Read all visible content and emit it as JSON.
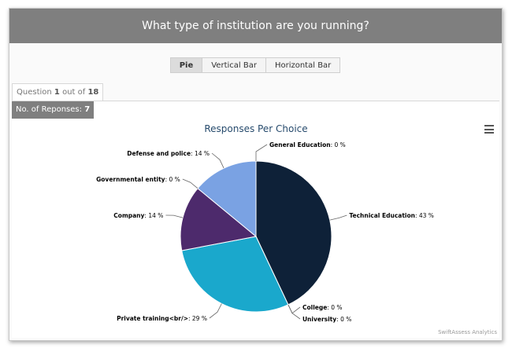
{
  "header": {
    "title": "What type of institution are you running?"
  },
  "toolbar": {
    "buttons": [
      "Pie",
      "Vertical Bar",
      "Horizontal Bar"
    ],
    "active": "Pie"
  },
  "question_tab": {
    "prefix": "Question",
    "current": "1",
    "separator": "out of",
    "total": "18"
  },
  "responses": {
    "label": "No. of Reponses:",
    "count": "7"
  },
  "credits": "SwiftAssess Analytics",
  "chart_data": {
    "type": "pie",
    "title": "Responses Per Choice",
    "slices": [
      {
        "label": "General Education",
        "value": 0,
        "display": "0 %",
        "color": "#7eb1e6"
      },
      {
        "label": "Technical Education",
        "value": 43,
        "display": "43 %",
        "color": "#0e2138"
      },
      {
        "label": "College",
        "value": 0,
        "display": "0 %",
        "color": "#0e2138"
      },
      {
        "label": "University",
        "value": 0,
        "display": "0 %",
        "color": "#1aa8cc"
      },
      {
        "label": "Private training<br/>",
        "value": 29,
        "display": "29 %",
        "color": "#1aa8cc"
      },
      {
        "label": "Company",
        "value": 14,
        "display": "14 %",
        "color": "#4d2a6c"
      },
      {
        "label": "Governmental entity",
        "value": 0,
        "display": "0 %",
        "color": "#4d2a6c"
      },
      {
        "label": "Defense and police",
        "value": 14,
        "display": "14 %",
        "color": "#7aa2e3"
      }
    ]
  }
}
